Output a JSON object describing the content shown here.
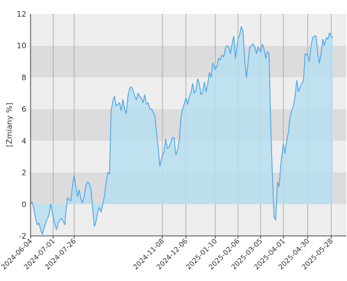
{
  "chart_data": {
    "type": "area",
    "title": "",
    "xlabel": "",
    "ylabel": "[Zmiany %]",
    "ylim": [
      -2,
      12
    ],
    "yticks": [
      -2,
      0,
      2,
      4,
      6,
      8,
      10,
      12
    ],
    "xlim": [
      "2024-06-04",
      "2025-06-15"
    ],
    "xticks": [
      "2024-06-04",
      "2024-07-01",
      "2024-07-26",
      "2024-11-08",
      "2024-12-06",
      "2025-01-10",
      "2025-02-06",
      "2025-03-05",
      "2025-04-01",
      "2025-04-30",
      "2025-05-28"
    ],
    "grid": true,
    "legend": "none",
    "colors": {
      "band_light": "#eeeeee",
      "band_dark": "#dcdcdc",
      "area_fill": "#b7def0",
      "line": "#4aa3e8",
      "vgrid": "#aaaaaa",
      "axis": "#333333"
    },
    "series": [
      {
        "name": "",
        "points": [
          [
            "2024-06-04",
            0.05
          ],
          [
            "2024-06-06",
            0.15
          ],
          [
            "2024-06-08",
            -0.3
          ],
          [
            "2024-06-10",
            -0.9
          ],
          [
            "2024-06-12",
            -1.3
          ],
          [
            "2024-06-14",
            -1.2
          ],
          [
            "2024-06-16",
            -1.6
          ],
          [
            "2024-06-18",
            -1.9
          ],
          [
            "2024-06-20",
            -1.5
          ],
          [
            "2024-06-22",
            -1.2
          ],
          [
            "2024-06-24",
            -0.9
          ],
          [
            "2024-06-26",
            -0.7
          ],
          [
            "2024-06-28",
            0.0
          ],
          [
            "2024-07-01",
            -0.8
          ],
          [
            "2024-07-03",
            -1.3
          ],
          [
            "2024-07-05",
            -1.6
          ],
          [
            "2024-07-07",
            -1.2
          ],
          [
            "2024-07-09",
            -1.0
          ],
          [
            "2024-07-11",
            -0.9
          ],
          [
            "2024-07-13",
            -1.1
          ],
          [
            "2024-07-15",
            -1.3
          ],
          [
            "2024-07-16",
            -0.5
          ],
          [
            "2024-07-18",
            0.4
          ],
          [
            "2024-07-20",
            0.3
          ],
          [
            "2024-07-22",
            0.2
          ],
          [
            "2024-07-24",
            1.2
          ],
          [
            "2024-07-26",
            1.8
          ],
          [
            "2024-07-28",
            1.0
          ],
          [
            "2024-07-30",
            0.5
          ],
          [
            "2024-08-01",
            0.9
          ],
          [
            "2024-08-03",
            0.3
          ],
          [
            "2024-08-05",
            0.1
          ],
          [
            "2024-08-07",
            0.5
          ],
          [
            "2024-08-09",
            1.2
          ],
          [
            "2024-08-11",
            1.4
          ],
          [
            "2024-08-13",
            1.3
          ],
          [
            "2024-08-15",
            0.9
          ],
          [
            "2024-08-17",
            -0.3
          ],
          [
            "2024-08-19",
            -1.4
          ],
          [
            "2024-08-21",
            -1.1
          ],
          [
            "2024-08-23",
            -0.5
          ],
          [
            "2024-08-25",
            -0.2
          ],
          [
            "2024-08-27",
            -0.5
          ],
          [
            "2024-08-29",
            0.0
          ],
          [
            "2024-08-31",
            0.5
          ],
          [
            "2024-09-02",
            1.4
          ],
          [
            "2024-09-04",
            2.0
          ],
          [
            "2024-09-06",
            1.9
          ],
          [
            "2024-09-08",
            5.9
          ],
          [
            "2024-09-10",
            6.5
          ],
          [
            "2024-09-12",
            6.8
          ],
          [
            "2024-09-14",
            6.2
          ],
          [
            "2024-09-16",
            6.3
          ],
          [
            "2024-09-18",
            6.4
          ],
          [
            "2024-09-20",
            5.9
          ],
          [
            "2024-09-22",
            6.6
          ],
          [
            "2024-09-24",
            6.0
          ],
          [
            "2024-09-26",
            5.7
          ],
          [
            "2024-09-28",
            6.8
          ],
          [
            "2024-09-30",
            7.3
          ],
          [
            "2024-10-02",
            7.4
          ],
          [
            "2024-10-04",
            7.2
          ],
          [
            "2024-10-06",
            6.8
          ],
          [
            "2024-10-08",
            6.6
          ],
          [
            "2024-10-10",
            7.0
          ],
          [
            "2024-10-12",
            6.8
          ],
          [
            "2024-10-14",
            6.7
          ],
          [
            "2024-10-16",
            6.4
          ],
          [
            "2024-10-18",
            6.9
          ],
          [
            "2024-10-20",
            6.3
          ],
          [
            "2024-10-22",
            6.4
          ],
          [
            "2024-10-24",
            6.0
          ],
          [
            "2024-10-26",
            6.0
          ],
          [
            "2024-10-28",
            5.8
          ],
          [
            "2024-10-30",
            5.6
          ],
          [
            "2024-11-01",
            4.5
          ],
          [
            "2024-11-03",
            3.6
          ],
          [
            "2024-11-05",
            2.4
          ],
          [
            "2024-11-08",
            3.1
          ],
          [
            "2024-11-10",
            3.3
          ],
          [
            "2024-11-12",
            4.1
          ],
          [
            "2024-11-14",
            3.5
          ],
          [
            "2024-11-16",
            3.6
          ],
          [
            "2024-11-18",
            3.9
          ],
          [
            "2024-11-20",
            4.2
          ],
          [
            "2024-11-22",
            4.2
          ],
          [
            "2024-11-24",
            3.1
          ],
          [
            "2024-11-26",
            3.4
          ],
          [
            "2024-11-28",
            4.0
          ],
          [
            "2024-11-30",
            5.4
          ],
          [
            "2024-12-02",
            6.0
          ],
          [
            "2024-12-04",
            6.3
          ],
          [
            "2024-12-06",
            6.7
          ],
          [
            "2024-12-08",
            6.3
          ],
          [
            "2024-12-10",
            6.8
          ],
          [
            "2024-12-12",
            7.0
          ],
          [
            "2024-12-14",
            7.6
          ],
          [
            "2024-12-16",
            7.0
          ],
          [
            "2024-12-18",
            7.2
          ],
          [
            "2024-12-20",
            7.9
          ],
          [
            "2024-12-22",
            7.6
          ],
          [
            "2024-12-24",
            6.9
          ],
          [
            "2024-12-26",
            7.1
          ],
          [
            "2024-12-28",
            7.7
          ],
          [
            "2024-12-30",
            7.1
          ],
          [
            "2025-01-01",
            7.6
          ],
          [
            "2025-01-03",
            8.3
          ],
          [
            "2025-01-05",
            8.0
          ],
          [
            "2025-01-07",
            8.9
          ],
          [
            "2025-01-10",
            8.5
          ],
          [
            "2025-01-12",
            8.7
          ],
          [
            "2025-01-14",
            9.2
          ],
          [
            "2025-01-16",
            9.1
          ],
          [
            "2025-01-18",
            9.4
          ],
          [
            "2025-01-20",
            9.3
          ],
          [
            "2025-01-22",
            9.8
          ],
          [
            "2025-01-24",
            10.0
          ],
          [
            "2025-01-26",
            9.9
          ],
          [
            "2025-01-28",
            9.5
          ],
          [
            "2025-01-30",
            10.1
          ],
          [
            "2025-02-01",
            10.6
          ],
          [
            "2025-02-03",
            9.2
          ],
          [
            "2025-02-06",
            10.4
          ],
          [
            "2025-02-08",
            10.7
          ],
          [
            "2025-02-10",
            11.2
          ],
          [
            "2025-02-12",
            10.9
          ],
          [
            "2025-02-14",
            9.1
          ],
          [
            "2025-02-16",
            8.0
          ],
          [
            "2025-02-18",
            8.9
          ],
          [
            "2025-02-20",
            9.9
          ],
          [
            "2025-02-22",
            10.0
          ],
          [
            "2025-02-24",
            10.1
          ],
          [
            "2025-02-26",
            9.9
          ],
          [
            "2025-02-28",
            9.5
          ],
          [
            "2025-03-02",
            9.9
          ],
          [
            "2025-03-05",
            9.6
          ],
          [
            "2025-03-07",
            10.1
          ],
          [
            "2025-03-09",
            9.8
          ],
          [
            "2025-03-11",
            9.2
          ],
          [
            "2025-03-13",
            9.6
          ],
          [
            "2025-03-15",
            9.5
          ],
          [
            "2025-03-17",
            5.0
          ],
          [
            "2025-03-19",
            1.8
          ],
          [
            "2025-03-21",
            -0.8
          ],
          [
            "2025-03-23",
            -1.0
          ],
          [
            "2025-03-25",
            1.4
          ],
          [
            "2025-03-27",
            1.1
          ],
          [
            "2025-03-29",
            2.5
          ],
          [
            "2025-04-01",
            3.8
          ],
          [
            "2025-04-03",
            3.2
          ],
          [
            "2025-04-05",
            4.0
          ],
          [
            "2025-04-07",
            4.5
          ],
          [
            "2025-04-09",
            5.5
          ],
          [
            "2025-04-11",
            5.9
          ],
          [
            "2025-04-13",
            6.2
          ],
          [
            "2025-04-15",
            6.8
          ],
          [
            "2025-04-17",
            7.8
          ],
          [
            "2025-04-19",
            7.1
          ],
          [
            "2025-04-21",
            7.4
          ],
          [
            "2025-04-23",
            7.6
          ],
          [
            "2025-04-25",
            7.8
          ],
          [
            "2025-04-27",
            9.5
          ],
          [
            "2025-04-30",
            9.4
          ],
          [
            "2025-05-02",
            9.0
          ],
          [
            "2025-05-04",
            10.0
          ],
          [
            "2025-05-06",
            10.5
          ],
          [
            "2025-05-08",
            10.6
          ],
          [
            "2025-05-10",
            10.6
          ],
          [
            "2025-05-12",
            9.5
          ],
          [
            "2025-05-14",
            8.9
          ],
          [
            "2025-05-16",
            9.5
          ],
          [
            "2025-05-18",
            10.4
          ],
          [
            "2025-05-20",
            10.0
          ],
          [
            "2025-05-22",
            10.5
          ],
          [
            "2025-05-24",
            10.4
          ],
          [
            "2025-05-26",
            10.8
          ],
          [
            "2025-05-28",
            10.6
          ],
          [
            "2025-05-30",
            10.5
          ]
        ]
      }
    ]
  }
}
